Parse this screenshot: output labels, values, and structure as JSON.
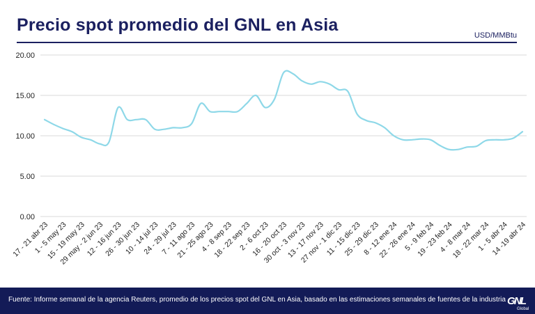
{
  "header": {
    "title": "Precio spot promedio del GNL en Asia",
    "unit": "USD/MMBtu"
  },
  "footer": {
    "source": "Fuente: Informe semanal de la agencia Reuters, promedio de los precios spot del GNL en Asia, basado en las estimaciones semanales de fuentes de la industria",
    "logo_text": "GNL",
    "logo_sub": "Global"
  },
  "colors": {
    "title": "#1b2060",
    "line": "#8ed8e8",
    "grid": "#d9d9d9",
    "footer_bg": "#131b57"
  },
  "chart_data": {
    "type": "line",
    "title": "Precio spot promedio del GNL en Asia",
    "ylabel": "USD/MMBtu",
    "xlabel": "",
    "ylim": [
      0,
      20
    ],
    "yticks": [
      "0.00",
      "5.00",
      "10.00",
      "15.00",
      "20.00"
    ],
    "grid": true,
    "legend": "none",
    "categories": [
      "17 - 21 abr 23",
      "1 - 5 may 23",
      "15 - 19 may 23",
      "29 may - 2 jun 23",
      "12 - 16 jun 23",
      "26 - 30 jun 23",
      "10 - 14 jul 23",
      "24 - 29 jul 23",
      "7 - 11 ago 23",
      "21 - 25 ago 23",
      "4 - 8 sep 23",
      "18 - 22 sep 23",
      "2 - 6 oct 23",
      "16 - 20 oct 23",
      "30 oct - 3 nov 23",
      "13 - 17 nov 23",
      "27 nov - 1 dic 23",
      "11 - 15 dic 23",
      "25 - 29 dic 23",
      "8 - 12 ene 24",
      "22 - 26 ene 24",
      "5 - 9 feb 24",
      "19 - 23 feb 24",
      "4 - 8 mar 24",
      "18 - 22 mar 24",
      "1 - 5 abr 24",
      "14 -19 abr 24"
    ],
    "x": [
      0,
      0.5,
      1,
      1.5,
      2,
      2.5,
      3,
      3.5,
      4,
      4.5,
      5,
      5.5,
      6,
      6.5,
      7,
      7.5,
      8,
      8.5,
      9,
      9.5,
      10,
      10.5,
      11,
      11.5,
      12,
      12.5,
      13,
      13.5,
      14,
      14.5,
      15,
      15.5,
      16,
      16.5,
      17,
      17.5,
      18,
      18.5,
      19,
      19.5,
      20,
      20.5,
      21,
      21.5,
      22,
      22.5,
      23,
      23.5,
      24,
      24.5,
      25,
      25.5,
      26
    ],
    "series": [
      {
        "values": [
          12.0,
          11.4,
          10.9,
          10.5,
          9.8,
          9.5,
          9.0,
          9.2,
          13.5,
          12.0,
          12.0,
          12.0,
          10.8,
          10.8,
          11.0,
          11.0,
          11.5,
          14.0,
          13.0,
          13.0,
          13.0,
          13.0,
          14.0,
          15.0,
          13.5,
          14.5,
          17.8,
          17.7,
          16.8,
          16.4,
          16.7,
          16.4,
          15.7,
          15.5,
          12.7,
          11.9,
          11.6,
          11.0,
          10.0,
          9.5,
          9.5,
          9.6,
          9.5,
          8.8,
          8.3,
          8.3,
          8.6,
          8.7,
          9.4,
          9.5,
          9.5,
          9.7,
          10.5
        ]
      }
    ]
  }
}
